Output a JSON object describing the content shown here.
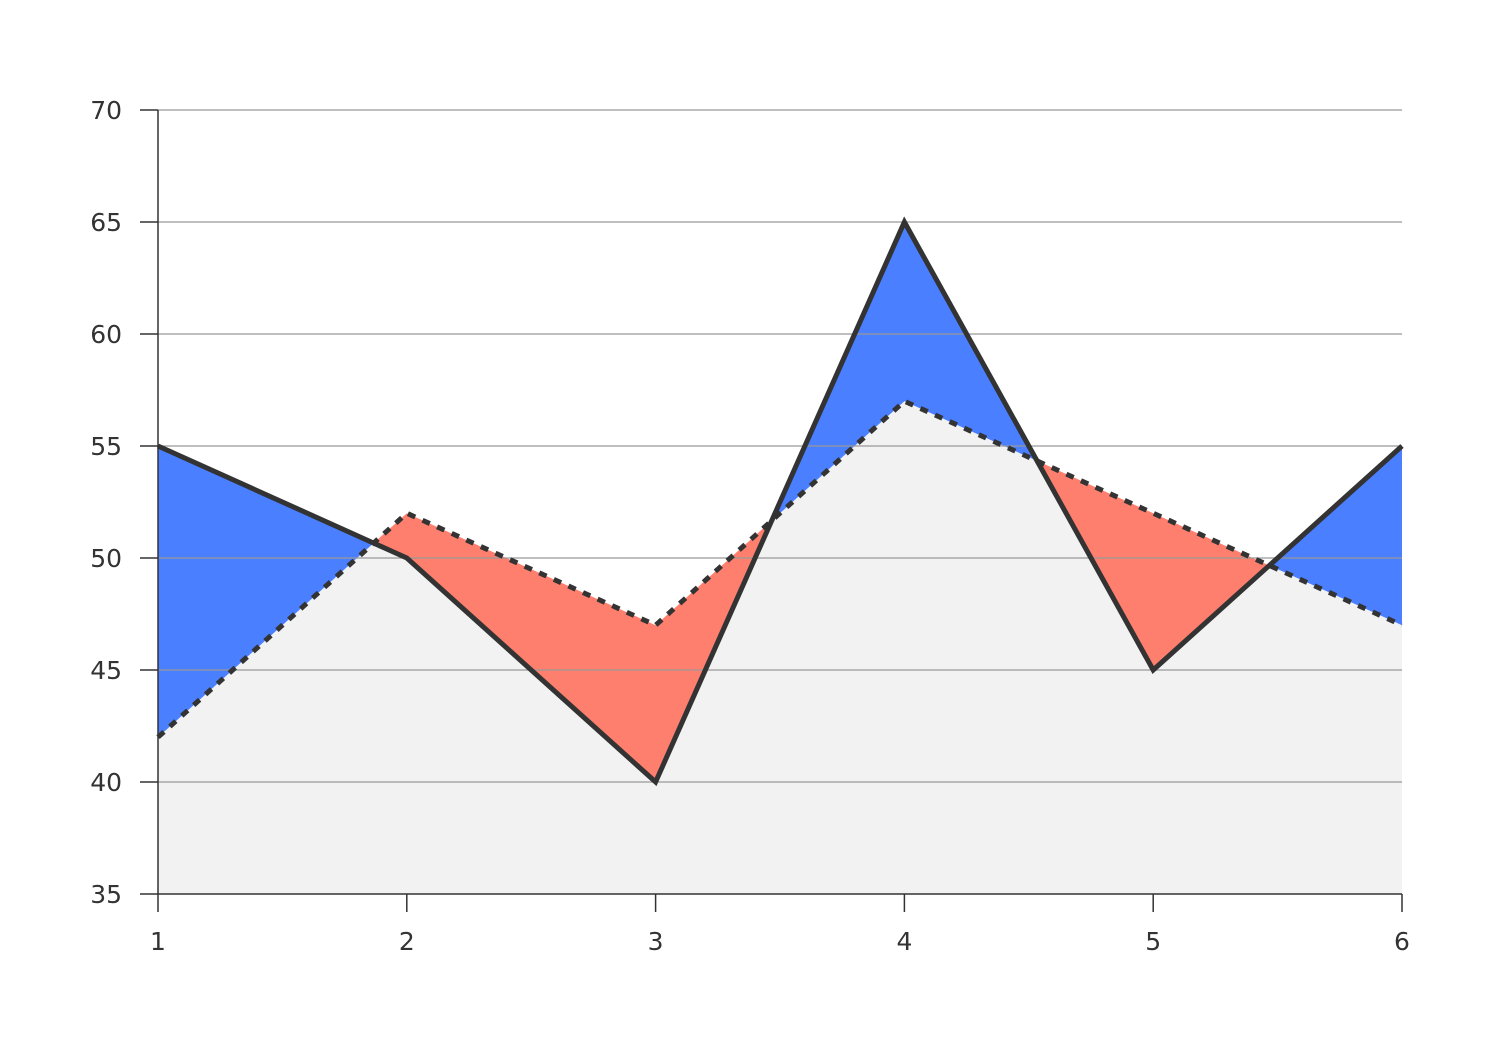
{
  "chart_data": {
    "type": "line",
    "title": "",
    "xlabel": "",
    "ylabel": "",
    "x": [
      1,
      2,
      3,
      4,
      5,
      6
    ],
    "x_tick_labels": [
      "1",
      "2",
      "3",
      "4",
      "5",
      "6"
    ],
    "ylim": [
      35,
      70
    ],
    "y_ticks": [
      35,
      40,
      45,
      50,
      55,
      60,
      65,
      70
    ],
    "y_tick_labels": [
      "35",
      "40",
      "45",
      "50",
      "55",
      "60",
      "65",
      "70"
    ],
    "grid": "horizontal",
    "legend": "none",
    "series": [
      {
        "values": [
          55,
          50,
          40,
          65,
          45,
          55
        ],
        "line_style": "solid",
        "color": "#333333"
      },
      {
        "values": [
          42,
          52,
          47,
          57,
          52,
          47
        ],
        "line_style": "dotted",
        "color": "#333333"
      }
    ],
    "fills": {
      "solid_above_dotted": "#4a7fff",
      "dotted_above_solid": "#ff7f6e",
      "below_both": "#f2f2f2"
    },
    "colors": {
      "axis": "#333333",
      "grid": "#999999",
      "background": "#ffffff"
    }
  }
}
